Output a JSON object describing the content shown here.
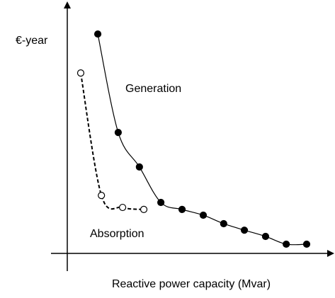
{
  "chart_data": {
    "type": "scatter",
    "x_label": "Reactive power capacity (Mvar)",
    "y_label": "€-year",
    "xlim": [
      0,
      100
    ],
    "ylim": [
      0,
      100
    ],
    "series": [
      {
        "name": "Generation",
        "color": "#000000",
        "filled": true,
        "dashed": false,
        "x": [
          11.8,
          19.7,
          27.9,
          36.2,
          44.4,
          52.6,
          60.5,
          68.5,
          76.7,
          84.7,
          92.6
        ],
        "values": [
          87.8,
          48.4,
          34.6,
          20.4,
          17.6,
          15.3,
          11.9,
          9.3,
          6.8,
          3.7,
          3.7
        ]
      },
      {
        "name": "Absorption",
        "color": "#000000",
        "filled": false,
        "dashed": true,
        "x": [
          5.2,
          13.2,
          21.4,
          29.6
        ],
        "values": [
          72.2,
          23.2,
          18.4,
          17.6
        ]
      }
    ]
  }
}
